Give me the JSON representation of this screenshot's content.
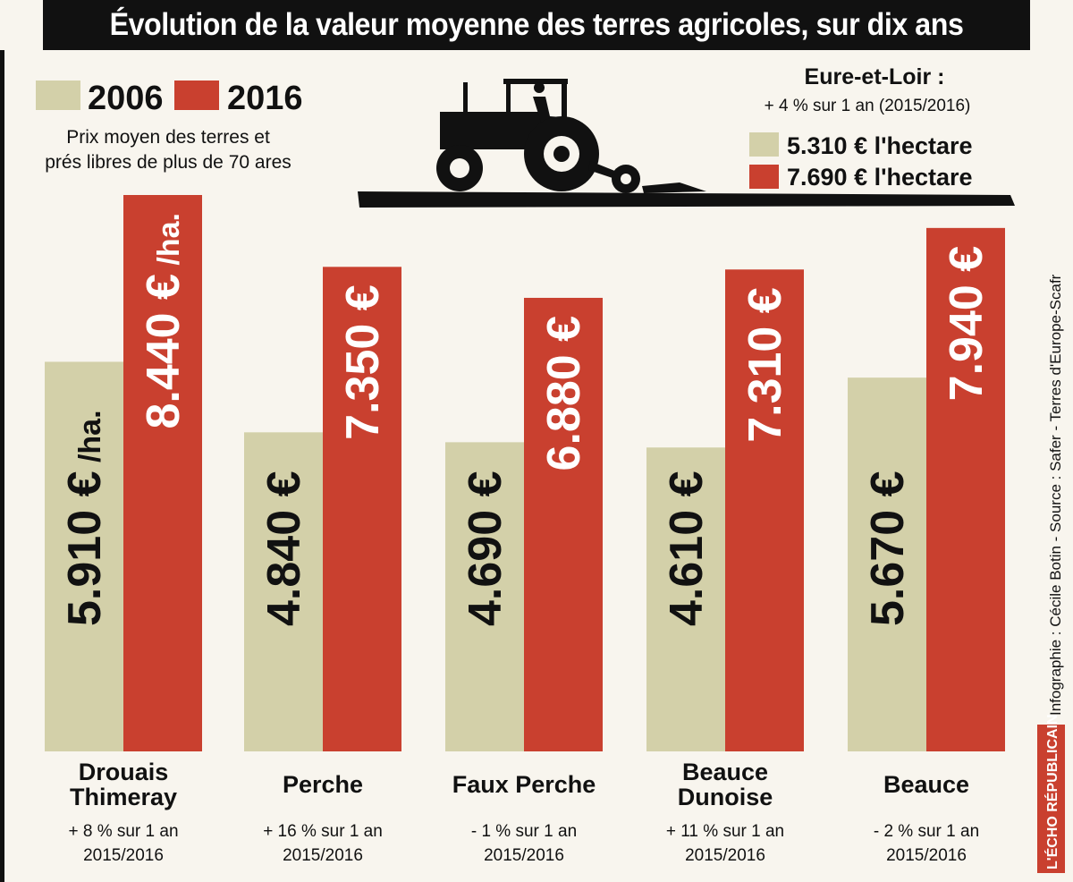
{
  "title": "Évolution de la valeur moyenne des terres agricoles, sur dix ans",
  "legend": {
    "items": [
      {
        "label": "2006",
        "color": "#d3d0a9"
      },
      {
        "label": "2016",
        "color": "#c9402f"
      }
    ],
    "note_line1": "Prix moyen des terres et",
    "note_line2": "prés libres de plus de 70 ares"
  },
  "summary": {
    "title": "Eure-et-Loir :",
    "change": "+ 4 % sur 1 an (2015/2016)",
    "value_2006": "5.310 € l'hectare",
    "value_2016": "7.690 € l'hectare"
  },
  "credits": "Infographie : Cécile Botin - Source : Safer - Terres d'Europe-Scafr",
  "logo_text": "L'ÉCHO RÉPUBLICAIN",
  "icons": {
    "illustration": "tractor-icon"
  },
  "chart_data": {
    "type": "bar",
    "title": "Évolution de la valeur moyenne des terres agricoles, sur dix ans",
    "categories": [
      "Drouais Thimeray",
      "Perche",
      "Faux Perche",
      "Beauce Dunoise",
      "Beauce"
    ],
    "category_lines": [
      [
        "Drouais",
        "Thimeray"
      ],
      [
        "Perche"
      ],
      [
        "Faux Perche"
      ],
      [
        "Beauce",
        "Dunoise"
      ],
      [
        "Beauce"
      ]
    ],
    "series": [
      {
        "name": "2006",
        "color": "#d3d0a9",
        "values": [
          5910,
          4840,
          4690,
          4610,
          5670
        ],
        "labels": [
          "5.910 €",
          "4.840 €",
          "4.690 €",
          "4.610 €",
          "5.670 €"
        ],
        "suffixes": [
          "/ha.",
          "",
          "",
          "",
          ""
        ]
      },
      {
        "name": "2016",
        "color": "#c9402f",
        "values": [
          8440,
          7350,
          6880,
          7310,
          7940
        ],
        "labels": [
          "8.440 €",
          "7.350 €",
          "6.880 €",
          "7.310 €",
          "7.940 €"
        ],
        "suffixes": [
          "/ha.",
          "",
          "",
          "",
          ""
        ]
      }
    ],
    "annotations": [
      {
        "change": "+ 8 % sur 1 an",
        "period": "2015/2016"
      },
      {
        "change": "+ 16 % sur 1 an",
        "period": "2015/2016"
      },
      {
        "change": "- 1 % sur 1 an",
        "period": "2015/2016"
      },
      {
        "change": "+ 11 % sur 1 an",
        "period": "2015/2016"
      },
      {
        "change": "- 2 % sur 1 an",
        "period": "2015/2016"
      }
    ],
    "unit": "€ / ha",
    "grid": false,
    "legend_position": "top-left"
  }
}
